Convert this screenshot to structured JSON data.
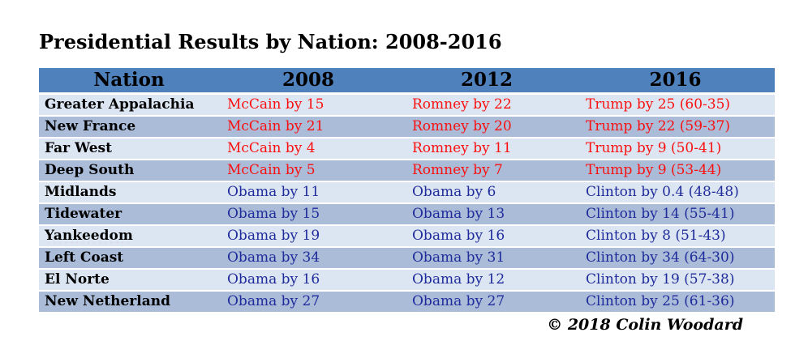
{
  "title": "Presidential Results by Nation: 2008-2016",
  "copyright": "© 2018 Colin Woodard",
  "colors": {
    "header_bg": "#4F81BD",
    "row_light": "#DCE6F2",
    "row_dark": "#AABCD8",
    "republican": "#FA1010",
    "democrat": "#202C9C",
    "separator": "#FFFFFF",
    "text": "#000000"
  },
  "table": {
    "columns": [
      {
        "label": "Nation"
      },
      {
        "label": "2008"
      },
      {
        "label": "2012"
      },
      {
        "label": "2016"
      }
    ],
    "rows": [
      {
        "nation": "Greater Appalachia",
        "party": "R",
        "misspelled": false,
        "y2008": "McCain by 15",
        "y2012": "Romney by 22",
        "y2016": "Trump by 25 (60-35)"
      },
      {
        "nation": "New France",
        "party": "R",
        "misspelled": false,
        "y2008": "McCain by 21",
        "y2012": "Romney by 20",
        "y2016": "Trump by 22 (59-37)"
      },
      {
        "nation": "Far West",
        "party": "R",
        "misspelled": false,
        "y2008": "McCain by 4",
        "y2012": "Romney by 11",
        "y2016": "Trump by 9 (50-41)"
      },
      {
        "nation": "Deep South",
        "party": "R",
        "misspelled": false,
        "y2008": "McCain by 5",
        "y2012": "Romney by 7",
        "y2016": "Trump by 9 (53-44)"
      },
      {
        "nation": "Midlands",
        "party": "D",
        "misspelled": false,
        "y2008": "Obama by 11",
        "y2012": "Obama by 6",
        "y2016": "Clinton by 0.4 (48-48)"
      },
      {
        "nation": "Tidewater",
        "party": "D",
        "misspelled": false,
        "y2008": "Obama by 15",
        "y2012": "Obama by 13",
        "y2016": "Clinton by 14 (55-41)"
      },
      {
        "nation": "Yankeedom",
        "party": "D",
        "misspelled": true,
        "y2008": "Obama by 19",
        "y2012": "Obama by 16",
        "y2016": "Clinton by 8 (51-43)"
      },
      {
        "nation": "Left Coast",
        "party": "D",
        "misspelled": false,
        "y2008": "Obama by 34",
        "y2012": "Obama by 31",
        "y2016": "Clinton by 34 (64-30)"
      },
      {
        "nation": "El Norte",
        "party": "D",
        "misspelled": false,
        "y2008": "Obama by 16",
        "y2012": "Obama by 12",
        "y2016": "Clinton by 19 (57-38)"
      },
      {
        "nation": "New Netherland",
        "party": "D",
        "misspelled": false,
        "y2008": "Obama by 27",
        "y2012": "Obama by 27",
        "y2016": "Clinton by 25 (61-36)"
      }
    ]
  }
}
